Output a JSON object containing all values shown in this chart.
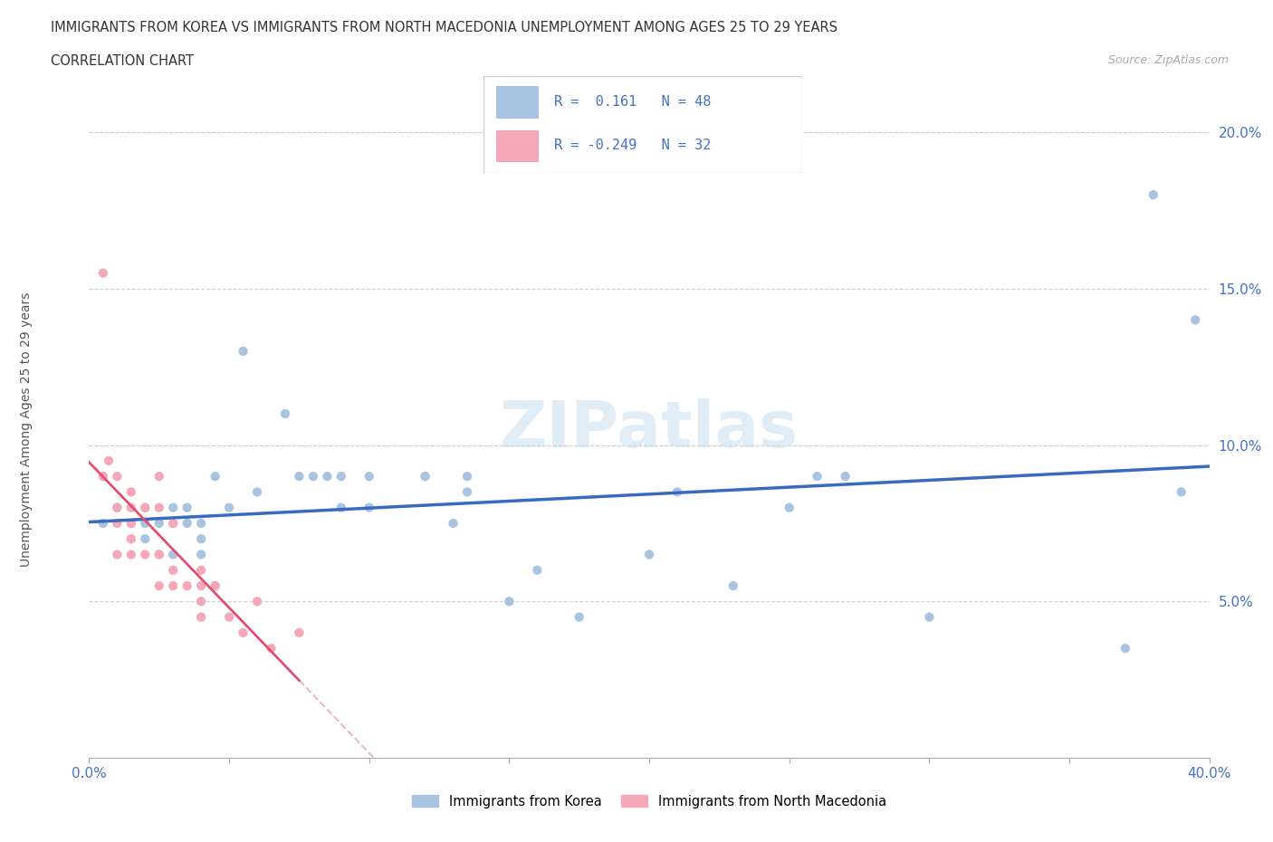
{
  "title_line1": "IMMIGRANTS FROM KOREA VS IMMIGRANTS FROM NORTH MACEDONIA UNEMPLOYMENT AMONG AGES 25 TO 29 YEARS",
  "title_line2": "CORRELATION CHART",
  "source_text": "Source: ZipAtlas.com",
  "ylabel": "Unemployment Among Ages 25 to 29 years",
  "xlim": [
    0.0,
    0.4
  ],
  "ylim": [
    0.0,
    0.21
  ],
  "xticks": [
    0.0,
    0.05,
    0.1,
    0.15,
    0.2,
    0.25,
    0.3,
    0.35,
    0.4
  ],
  "xticklabels": [
    "0.0%",
    "",
    "",
    "",
    "",
    "",
    "",
    "",
    "40.0%"
  ],
  "yticks": [
    0.0,
    0.05,
    0.1,
    0.15,
    0.2
  ],
  "yticklabels": [
    "",
    "5.0%",
    "10.0%",
    "15.0%",
    "20.0%"
  ],
  "korea_R": 0.161,
  "korea_N": 48,
  "macedonia_R": -0.249,
  "macedonia_N": 32,
  "korea_color": "#a8c4e0",
  "macedonia_color": "#f4a8b8",
  "korea_line_color": "#3a6abf",
  "macedonia_line_color": "#e05070",
  "macedonia_dash_color": "#e8b8c8",
  "watermark": "ZIPatlas",
  "korea_x": [
    0.005,
    0.01,
    0.015,
    0.02,
    0.02,
    0.02,
    0.025,
    0.025,
    0.03,
    0.03,
    0.03,
    0.035,
    0.035,
    0.04,
    0.04,
    0.04,
    0.045,
    0.045,
    0.05,
    0.055,
    0.06,
    0.07,
    0.075,
    0.08,
    0.085,
    0.09,
    0.09,
    0.1,
    0.1,
    0.12,
    0.12,
    0.13,
    0.135,
    0.135,
    0.15,
    0.16,
    0.175,
    0.2,
    0.21,
    0.23,
    0.25,
    0.26,
    0.27,
    0.3,
    0.37,
    0.38,
    0.39,
    0.395
  ],
  "korea_y": [
    0.075,
    0.08,
    0.075,
    0.08,
    0.075,
    0.07,
    0.075,
    0.065,
    0.08,
    0.075,
    0.065,
    0.08,
    0.075,
    0.075,
    0.07,
    0.065,
    0.09,
    0.055,
    0.08,
    0.13,
    0.085,
    0.11,
    0.09,
    0.09,
    0.09,
    0.09,
    0.08,
    0.09,
    0.08,
    0.09,
    0.09,
    0.075,
    0.09,
    0.085,
    0.05,
    0.06,
    0.045,
    0.065,
    0.085,
    0.055,
    0.08,
    0.09,
    0.09,
    0.045,
    0.035,
    0.18,
    0.085,
    0.14
  ],
  "macedonia_x": [
    0.005,
    0.005,
    0.007,
    0.01,
    0.01,
    0.01,
    0.01,
    0.015,
    0.015,
    0.015,
    0.015,
    0.015,
    0.02,
    0.02,
    0.025,
    0.025,
    0.025,
    0.025,
    0.03,
    0.03,
    0.03,
    0.035,
    0.04,
    0.04,
    0.04,
    0.04,
    0.045,
    0.05,
    0.055,
    0.06,
    0.065,
    0.075
  ],
  "macedonia_y": [
    0.155,
    0.09,
    0.095,
    0.09,
    0.08,
    0.075,
    0.065,
    0.085,
    0.08,
    0.075,
    0.07,
    0.065,
    0.08,
    0.065,
    0.09,
    0.08,
    0.065,
    0.055,
    0.075,
    0.06,
    0.055,
    0.055,
    0.06,
    0.055,
    0.05,
    0.045,
    0.055,
    0.045,
    0.04,
    0.05,
    0.035,
    0.04
  ]
}
